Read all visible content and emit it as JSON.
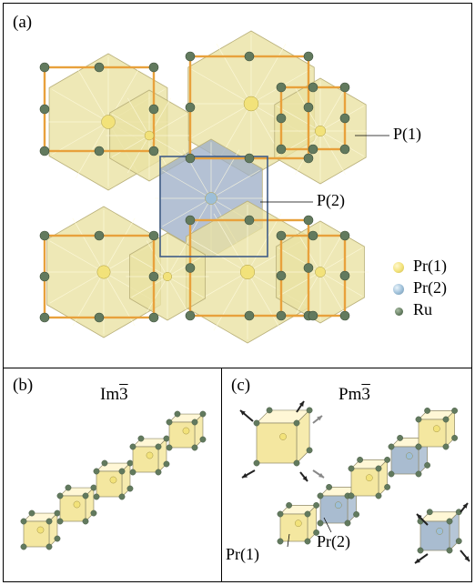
{
  "panel_a": {
    "label": "(a)",
    "annotations": {
      "p1": "P(1)",
      "p2": "P(2)"
    },
    "legend": [
      {
        "label": "Pr(1)",
        "color": "#f2e27a"
      },
      {
        "label": "Pr(2)",
        "color": "#9dbfd8"
      },
      {
        "label": "Ru",
        "color": "#5e7a5a"
      }
    ]
  },
  "panel_b": {
    "label": "(b)",
    "space_group_base": "Im",
    "space_group_bar": "3"
  },
  "panel_c": {
    "label": "(c)",
    "space_group_base": "Pm",
    "space_group_bar": "3",
    "callouts": {
      "pr1": "Pr(1)",
      "pr2": "Pr(2)"
    }
  },
  "colors": {
    "frame": "#e8a13c",
    "icosahedron": "#e9e2a2",
    "icosahedron_blue": "#9fb0c8",
    "ru": "#627a5e",
    "pr1": "#f2e27a",
    "pr2": "#9dbfd8",
    "cube_yellow": "#f4e7a0",
    "cube_blue": "#a9bcd0"
  }
}
